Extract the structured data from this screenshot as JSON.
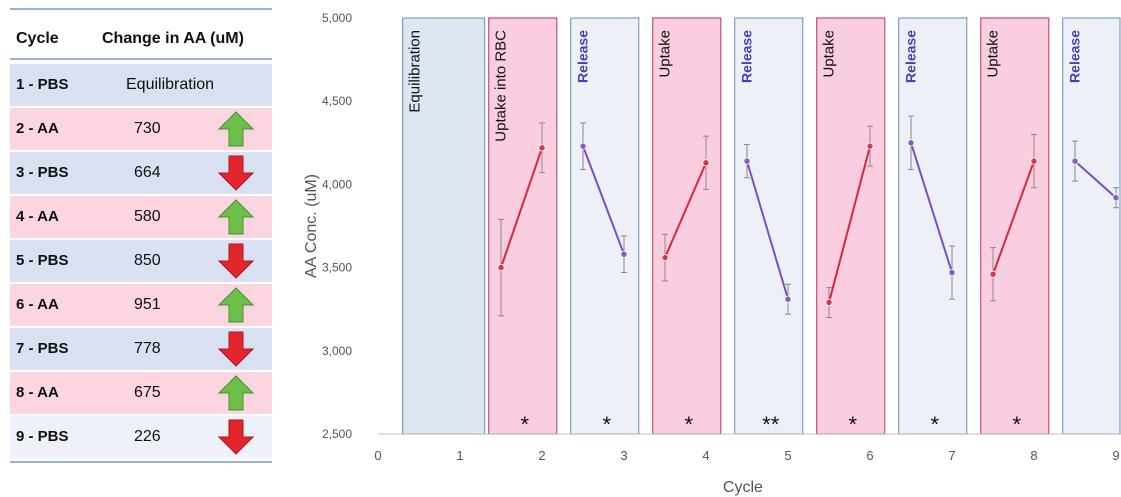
{
  "table": {
    "header": {
      "cycle": "Cycle",
      "change": "Change in AA (uM)"
    },
    "rows": [
      {
        "cycle": "1 - PBS",
        "value": "Equilibration",
        "direction": "none",
        "bg": "#d9e1f2"
      },
      {
        "cycle": "2 - AA",
        "value": "730",
        "direction": "up",
        "bg": "#fbd5e0"
      },
      {
        "cycle": "3 - PBS",
        "value": "664",
        "direction": "down",
        "bg": "#d9e1f2"
      },
      {
        "cycle": "4 - AA",
        "value": "580",
        "direction": "up",
        "bg": "#fbd5e0"
      },
      {
        "cycle": "5 - PBS",
        "value": "850",
        "direction": "down",
        "bg": "#d9e1f2"
      },
      {
        "cycle": "6 - AA",
        "value": "951",
        "direction": "up",
        "bg": "#fbd5e0"
      },
      {
        "cycle": "7 - PBS",
        "value": "778",
        "direction": "down",
        "bg": "#d9e1f2"
      },
      {
        "cycle": "8 - AA",
        "value": "675",
        "direction": "up",
        "bg": "#fbd5e0"
      },
      {
        "cycle": "9 - PBS",
        "value": "226",
        "direction": "down",
        "bg": "#eef1f8"
      }
    ],
    "arrow_colors": {
      "up": "#6cc04a",
      "down": "#e3262b"
    }
  },
  "chart_data": {
    "type": "line",
    "xlabel": "Cycle",
    "ylabel": "AA Conc. (uM)",
    "xlim": [
      0,
      9
    ],
    "ylim": [
      2500,
      5000
    ],
    "x_ticks": [
      "0",
      "1",
      "2",
      "3",
      "4",
      "5",
      "6",
      "7",
      "8",
      "9"
    ],
    "y_ticks": [
      "2,500",
      "3,000",
      "3,500",
      "4,000",
      "4,500",
      "5,000"
    ],
    "grid": false,
    "phases": [
      {
        "label": "Equilibration",
        "x_start": 0.3,
        "x_end": 1.3,
        "kind": "equilibration",
        "star": ""
      },
      {
        "label": "Uptake into RBC",
        "x_start": 1.35,
        "x_end": 2.18,
        "kind": "uptake",
        "star": "*"
      },
      {
        "label": "Release",
        "x_start": 2.35,
        "x_end": 3.18,
        "kind": "release",
        "star": "*"
      },
      {
        "label": "Uptake",
        "x_start": 3.35,
        "x_end": 4.18,
        "kind": "uptake",
        "star": "*"
      },
      {
        "label": "Release",
        "x_start": 4.35,
        "x_end": 5.18,
        "kind": "release",
        "star": "**"
      },
      {
        "label": "Uptake",
        "x_start": 5.35,
        "x_end": 6.18,
        "kind": "uptake",
        "star": "*"
      },
      {
        "label": "Release",
        "x_start": 6.35,
        "x_end": 7.18,
        "kind": "release",
        "star": "*"
      },
      {
        "label": "Uptake",
        "x_start": 7.35,
        "x_end": 8.18,
        "kind": "uptake",
        "star": "*"
      },
      {
        "label": "Release",
        "x_start": 8.35,
        "x_end": 9.18,
        "kind": "release",
        "star": ""
      }
    ],
    "phase_colors": {
      "equilibration": {
        "fill": "#dde7f2",
        "stroke": "#7da2c6",
        "text": "#111111"
      },
      "uptake": {
        "fill": "#fbcde0",
        "stroke": "#c0507a",
        "text": "#111111"
      },
      "release": {
        "fill": "#eef0f8",
        "stroke": "#7da2c6",
        "text": "#4a3fb5"
      }
    },
    "series": [
      {
        "kind": "uptake",
        "points": [
          {
            "x": 1.5,
            "y": 3500,
            "err": 290
          },
          {
            "x": 2.0,
            "y": 4220,
            "err": 150
          }
        ]
      },
      {
        "kind": "release",
        "points": [
          {
            "x": 2.5,
            "y": 4230,
            "err": 140
          },
          {
            "x": 3.0,
            "y": 3580,
            "err": 110
          }
        ]
      },
      {
        "kind": "uptake",
        "points": [
          {
            "x": 3.5,
            "y": 3560,
            "err": 140
          },
          {
            "x": 4.0,
            "y": 4130,
            "err": 160
          }
        ]
      },
      {
        "kind": "release",
        "points": [
          {
            "x": 4.5,
            "y": 4140,
            "err": 100
          },
          {
            "x": 5.0,
            "y": 3310,
            "err": 90
          }
        ]
      },
      {
        "kind": "uptake",
        "points": [
          {
            "x": 5.5,
            "y": 3290,
            "err": 90
          },
          {
            "x": 6.0,
            "y": 4230,
            "err": 120
          }
        ]
      },
      {
        "kind": "release",
        "points": [
          {
            "x": 6.5,
            "y": 4250,
            "err": 160
          },
          {
            "x": 7.0,
            "y": 3470,
            "err": 160
          }
        ]
      },
      {
        "kind": "uptake",
        "points": [
          {
            "x": 7.5,
            "y": 3460,
            "err": 160
          },
          {
            "x": 8.0,
            "y": 4140,
            "err": 160
          }
        ]
      },
      {
        "kind": "release",
        "points": [
          {
            "x": 8.5,
            "y": 4140,
            "err": 120
          },
          {
            "x": 9.0,
            "y": 3920,
            "err": 60
          }
        ]
      }
    ],
    "series_colors": {
      "uptake": "#d42a3c",
      "release": "#7b4fc4"
    }
  }
}
